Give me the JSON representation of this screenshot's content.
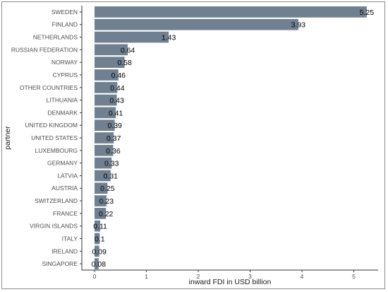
{
  "chart_data": {
    "type": "bar",
    "orientation": "horizontal",
    "xlabel": "inward FDI in USD billion",
    "ylabel": "partner",
    "xlim": [
      0,
      5.5
    ],
    "x_ticks": [
      0,
      1,
      2,
      3,
      4,
      5
    ],
    "bar_color": "#708090",
    "grid": false,
    "categories": [
      "SWEDEN",
      "FINLAND",
      "NETHERLANDS",
      "RUSSIAN FEDERATION",
      "NORWAY",
      "CYPRUS",
      "OTHER COUNTRIES",
      "LITHUANIA",
      "DENMARK",
      "UNITED KINGDOM",
      "UNITED STATES",
      "LUXEMBOURG",
      "GERMANY",
      "LATVIA",
      "AUSTRIA",
      "SWITZERLAND",
      "FRANCE",
      "VIRGIN ISLANDS",
      "ITALY",
      "IRELAND",
      "SINGAPORE"
    ],
    "values": [
      5.25,
      3.93,
      1.43,
      0.64,
      0.58,
      0.46,
      0.44,
      0.43,
      0.41,
      0.39,
      0.37,
      0.36,
      0.33,
      0.31,
      0.25,
      0.23,
      0.22,
      0.11,
      0.1,
      0.09,
      0.08
    ],
    "data_labels": [
      "5.25",
      "3.93",
      "1.43",
      "0.64",
      "0.58",
      "0.46",
      "0.44",
      "0.43",
      "0.41",
      "0.39",
      "0.37",
      "0.36",
      "0.33",
      "0.31",
      "0.25",
      "0.23",
      "0.22",
      "0.11",
      "0.1",
      "0.09",
      "0.08"
    ]
  }
}
